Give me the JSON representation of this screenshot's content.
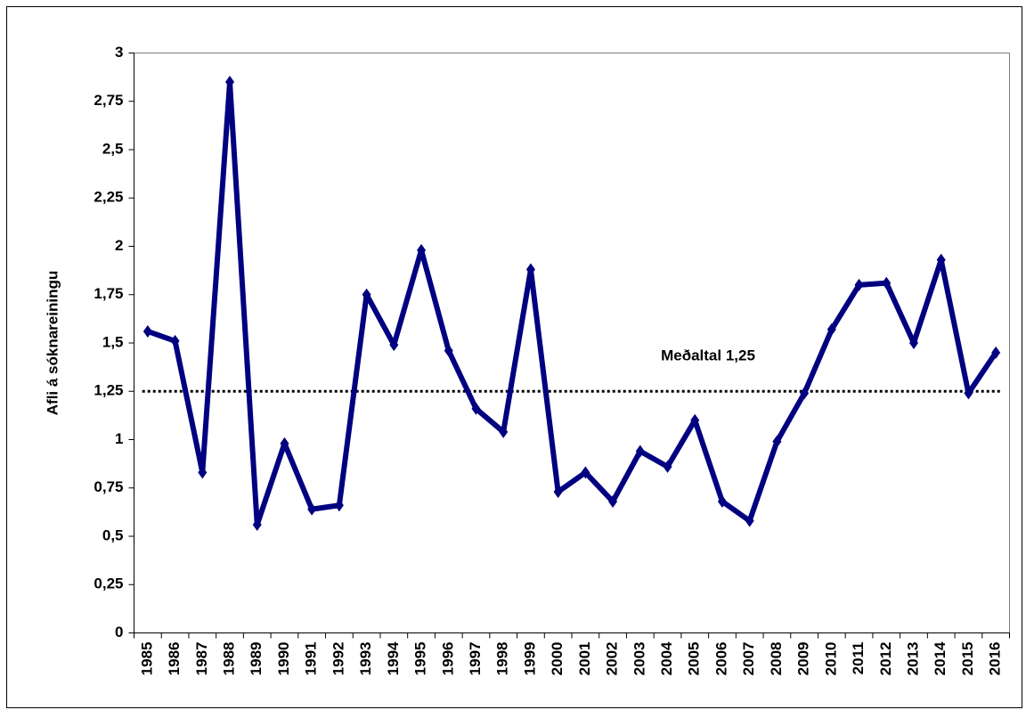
{
  "chart_data": {
    "type": "line",
    "y_label": "Afli á sóknareiningu",
    "categories": [
      "1985",
      "1986",
      "1987",
      "1988",
      "1989",
      "1990",
      "1991",
      "1992",
      "1993",
      "1994",
      "1995",
      "1996",
      "1997",
      "1998",
      "1999",
      "2000",
      "2001",
      "2002",
      "2003",
      "2004",
      "2005",
      "2006",
      "2007",
      "2008",
      "2009",
      "2010",
      "2011",
      "2012",
      "2013",
      "2014",
      "2015",
      "2016"
    ],
    "series": [
      {
        "color": "#000080",
        "values": [
          1.56,
          1.51,
          0.83,
          2.85,
          0.56,
          0.98,
          0.64,
          0.66,
          1.75,
          1.49,
          1.98,
          1.46,
          1.16,
          1.04,
          1.88,
          0.73,
          0.83,
          0.68,
          0.94,
          0.86,
          1.1,
          0.68,
          0.58,
          0.99,
          1.24,
          1.57,
          1.8,
          1.81,
          1.5,
          1.93,
          1.24,
          1.45
        ]
      }
    ],
    "reference_line": {
      "value": 1.25,
      "label": "Meðaltal 1,25"
    },
    "ylim": [
      0,
      3
    ],
    "yticks": [
      0,
      {
        "value": 0.25,
        "label": "0,25"
      },
      {
        "value": 0.5,
        "label": "0,5"
      },
      {
        "value": 0.75,
        "label": "0,75"
      },
      1,
      {
        "value": 1.25,
        "label": "1,25"
      },
      {
        "value": 1.5,
        "label": "1,5"
      },
      {
        "value": 1.75,
        "label": "1,75"
      },
      2,
      {
        "value": 2.25,
        "label": "2,25"
      },
      {
        "value": 2.5,
        "label": "2,5"
      },
      {
        "value": 2.75,
        "label": "2,75"
      },
      3
    ]
  }
}
